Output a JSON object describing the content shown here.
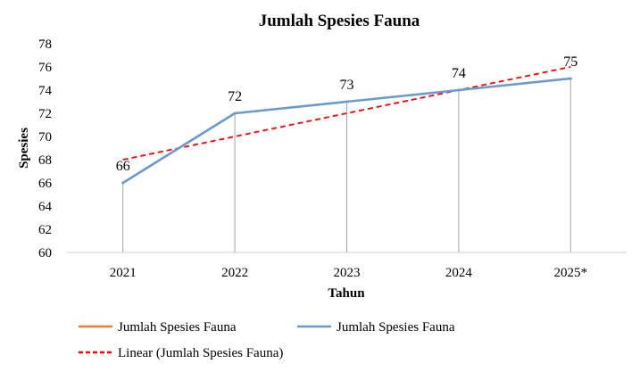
{
  "chart_data": {
    "type": "line",
    "title": "Jumlah Spesies Fauna",
    "xlabel": "Tahun",
    "ylabel": "Spesies",
    "categories": [
      "2021",
      "2022",
      "2023",
      "2024",
      "2025*"
    ],
    "ylim": [
      60,
      78
    ],
    "yticks": [
      60,
      62,
      64,
      66,
      68,
      70,
      72,
      74,
      76,
      78
    ],
    "grid": false,
    "drop_lines": true,
    "series": [
      {
        "name": "Jumlah Spesies Fauna",
        "values": [
          66,
          72,
          73,
          74,
          75
        ],
        "color": "#6b9bcd",
        "data_labels": [
          "66",
          "72",
          "73",
          "74",
          "75"
        ]
      }
    ],
    "trendline": {
      "name": "Linear (Jumlah Spesies Fauna)",
      "type": "linear",
      "values": [
        68,
        70,
        72,
        74,
        76
      ],
      "color": "#ff0000",
      "style": "dashed"
    },
    "legend": {
      "position": "bottom",
      "entries": [
        {
          "label": "Jumlah Spesies Fauna",
          "color": "#ed7d31",
          "style": "solid"
        },
        {
          "label": "Jumlah Spesies Fauna",
          "color": "#6b9bcd",
          "style": "solid"
        },
        {
          "label": "Linear (Jumlah Spesies Fauna)",
          "color": "#ff0000",
          "style": "dashed"
        }
      ]
    }
  }
}
